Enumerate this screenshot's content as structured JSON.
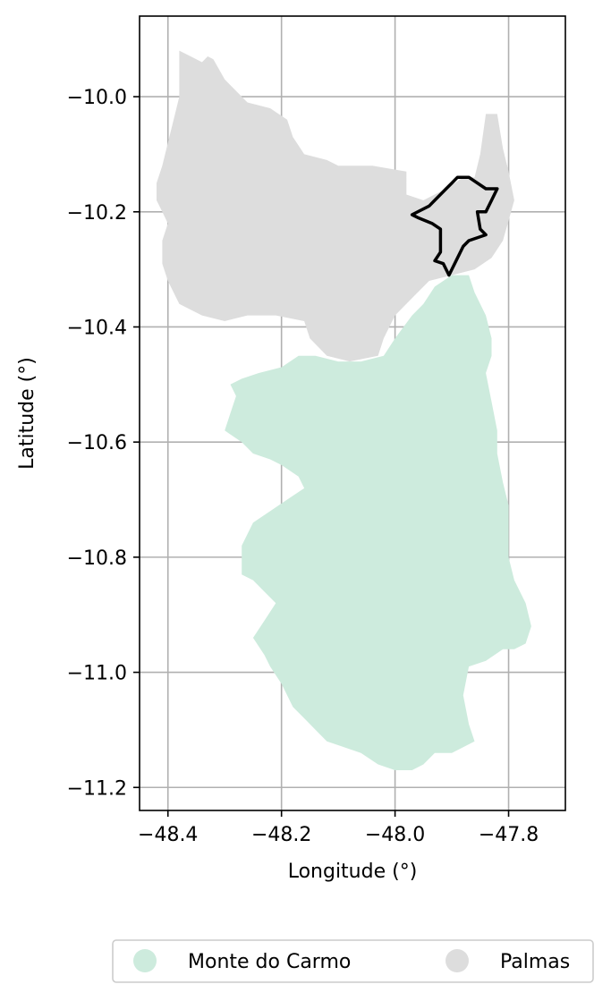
{
  "chart_data": {
    "type": "map",
    "xlabel": "Longitude (°)",
    "ylabel": "Latitude (°)",
    "xlim": [
      -48.45,
      -47.7
    ],
    "ylim": [
      -11.24,
      -9.86
    ],
    "x_ticks": [
      -48.4,
      -48.2,
      -48.0,
      -47.8
    ],
    "x_tick_labels": [
      "−48.4",
      "−48.2",
      "−48.0",
      "−47.8"
    ],
    "y_ticks": [
      -10.0,
      -10.2,
      -10.4,
      -10.6,
      -10.8,
      -11.0,
      -11.2
    ],
    "y_tick_labels": [
      "−10.0",
      "−10.2",
      "−10.4",
      "−10.6",
      "−10.8",
      "−11.0",
      "−11.2"
    ],
    "grid": true,
    "legend_position": "bottom-center",
    "regions": [
      {
        "name": "Palmas",
        "color": "#dddddd",
        "polygon": [
          [
            -48.38,
            -9.92
          ],
          [
            -48.36,
            -9.93
          ],
          [
            -48.34,
            -9.94
          ],
          [
            -48.33,
            -9.93
          ],
          [
            -48.32,
            -9.935
          ],
          [
            -48.3,
            -9.97
          ],
          [
            -48.26,
            -10.01
          ],
          [
            -48.22,
            -10.02
          ],
          [
            -48.19,
            -10.04
          ],
          [
            -48.18,
            -10.07
          ],
          [
            -48.16,
            -10.1
          ],
          [
            -48.12,
            -10.11
          ],
          [
            -48.1,
            -10.12
          ],
          [
            -48.04,
            -10.12
          ],
          [
            -47.98,
            -10.13
          ],
          [
            -47.98,
            -10.17
          ],
          [
            -47.95,
            -10.18
          ],
          [
            -47.91,
            -10.16
          ],
          [
            -47.88,
            -10.14
          ],
          [
            -47.86,
            -10.14
          ],
          [
            -47.85,
            -10.1
          ],
          [
            -47.84,
            -10.03
          ],
          [
            -47.82,
            -10.03
          ],
          [
            -47.81,
            -10.09
          ],
          [
            -47.8,
            -10.13
          ],
          [
            -47.79,
            -10.18
          ],
          [
            -47.81,
            -10.25
          ],
          [
            -47.83,
            -10.28
          ],
          [
            -47.86,
            -10.3
          ],
          [
            -47.9,
            -10.31
          ],
          [
            -47.94,
            -10.32
          ],
          [
            -47.97,
            -10.35
          ],
          [
            -48.0,
            -10.38
          ],
          [
            -48.02,
            -10.42
          ],
          [
            -48.03,
            -10.45
          ],
          [
            -48.08,
            -10.46
          ],
          [
            -48.12,
            -10.45
          ],
          [
            -48.15,
            -10.42
          ],
          [
            -48.16,
            -10.39
          ],
          [
            -48.21,
            -10.38
          ],
          [
            -48.26,
            -10.38
          ],
          [
            -48.3,
            -10.39
          ],
          [
            -48.34,
            -10.38
          ],
          [
            -48.38,
            -10.36
          ],
          [
            -48.4,
            -10.32
          ],
          [
            -48.41,
            -10.29
          ],
          [
            -48.41,
            -10.25
          ],
          [
            -48.4,
            -10.22
          ],
          [
            -48.41,
            -10.2
          ],
          [
            -48.42,
            -10.18
          ],
          [
            -48.42,
            -10.15
          ],
          [
            -48.41,
            -10.12
          ],
          [
            -48.4,
            -10.08
          ],
          [
            -48.39,
            -10.04
          ],
          [
            -48.38,
            -10.0
          ],
          [
            -48.38,
            -9.96
          ]
        ]
      },
      {
        "name": "Monte do Carmo",
        "color": "#cdebdd",
        "polygon": [
          [
            -48.02,
            -10.45
          ],
          [
            -48.0,
            -10.42
          ],
          [
            -47.97,
            -10.38
          ],
          [
            -47.95,
            -10.36
          ],
          [
            -47.93,
            -10.33
          ],
          [
            -47.9,
            -10.31
          ],
          [
            -47.87,
            -10.31
          ],
          [
            -47.86,
            -10.34
          ],
          [
            -47.84,
            -10.38
          ],
          [
            -47.83,
            -10.42
          ],
          [
            -47.83,
            -10.45
          ],
          [
            -47.84,
            -10.48
          ],
          [
            -47.83,
            -10.53
          ],
          [
            -47.82,
            -10.58
          ],
          [
            -47.82,
            -10.62
          ],
          [
            -47.81,
            -10.67
          ],
          [
            -47.8,
            -10.71
          ],
          [
            -47.8,
            -10.76
          ],
          [
            -47.8,
            -10.8
          ],
          [
            -47.79,
            -10.84
          ],
          [
            -47.77,
            -10.88
          ],
          [
            -47.76,
            -10.92
          ],
          [
            -47.77,
            -10.95
          ],
          [
            -47.79,
            -10.96
          ],
          [
            -47.81,
            -10.96
          ],
          [
            -47.84,
            -10.98
          ],
          [
            -47.87,
            -10.99
          ],
          [
            -47.88,
            -11.04
          ],
          [
            -47.87,
            -11.09
          ],
          [
            -47.86,
            -11.12
          ],
          [
            -47.88,
            -11.13
          ],
          [
            -47.9,
            -11.14
          ],
          [
            -47.93,
            -11.14
          ],
          [
            -47.95,
            -11.16
          ],
          [
            -47.97,
            -11.17
          ],
          [
            -48.0,
            -11.17
          ],
          [
            -48.03,
            -11.16
          ],
          [
            -48.06,
            -11.14
          ],
          [
            -48.09,
            -11.13
          ],
          [
            -48.12,
            -11.12
          ],
          [
            -48.14,
            -11.1
          ],
          [
            -48.16,
            -11.08
          ],
          [
            -48.18,
            -11.06
          ],
          [
            -48.2,
            -11.02
          ],
          [
            -48.22,
            -10.99
          ],
          [
            -48.23,
            -10.97
          ],
          [
            -48.25,
            -10.94
          ],
          [
            -48.23,
            -10.91
          ],
          [
            -48.21,
            -10.88
          ],
          [
            -48.23,
            -10.86
          ],
          [
            -48.25,
            -10.84
          ],
          [
            -48.27,
            -10.83
          ],
          [
            -48.27,
            -10.78
          ],
          [
            -48.25,
            -10.74
          ],
          [
            -48.22,
            -10.72
          ],
          [
            -48.19,
            -10.7
          ],
          [
            -48.16,
            -10.68
          ],
          [
            -48.17,
            -10.66
          ],
          [
            -48.2,
            -10.64
          ],
          [
            -48.22,
            -10.63
          ],
          [
            -48.25,
            -10.62
          ],
          [
            -48.27,
            -10.6
          ],
          [
            -48.3,
            -10.58
          ],
          [
            -48.29,
            -10.55
          ],
          [
            -48.28,
            -10.52
          ],
          [
            -48.29,
            -10.5
          ],
          [
            -48.27,
            -10.49
          ],
          [
            -48.24,
            -10.48
          ],
          [
            -48.2,
            -10.47
          ],
          [
            -48.17,
            -10.45
          ],
          [
            -48.14,
            -10.45
          ],
          [
            -48.1,
            -10.46
          ],
          [
            -48.06,
            -10.46
          ]
        ]
      }
    ],
    "highlight_outline": {
      "color": "#000000",
      "polygon": [
        [
          -47.89,
          -10.14
        ],
        [
          -47.87,
          -10.14
        ],
        [
          -47.84,
          -10.16
        ],
        [
          -47.82,
          -10.16
        ],
        [
          -47.83,
          -10.18
        ],
        [
          -47.84,
          -10.2
        ],
        [
          -47.855,
          -10.2
        ],
        [
          -47.85,
          -10.23
        ],
        [
          -47.84,
          -10.24
        ],
        [
          -47.87,
          -10.25
        ],
        [
          -47.88,
          -10.26
        ],
        [
          -47.905,
          -10.31
        ],
        [
          -47.915,
          -10.29
        ],
        [
          -47.93,
          -10.285
        ],
        [
          -47.92,
          -10.27
        ],
        [
          -47.92,
          -10.23
        ],
        [
          -47.935,
          -10.22
        ],
        [
          -47.96,
          -10.21
        ],
        [
          -47.97,
          -10.205
        ],
        [
          -47.94,
          -10.19
        ],
        [
          -47.93,
          -10.18
        ],
        [
          -47.91,
          -10.16
        ],
        [
          -47.9,
          -10.15
        ]
      ]
    }
  },
  "legend": {
    "items": [
      {
        "label": "Monte do Carmo",
        "color": "#cdebdd"
      },
      {
        "label": "Palmas",
        "color": "#dddddd"
      }
    ]
  }
}
